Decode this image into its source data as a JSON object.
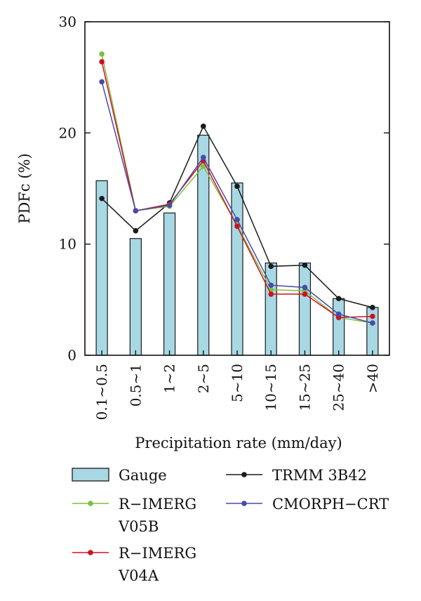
{
  "chart_data": {
    "type": "bar",
    "title": "",
    "xlabel": "Precipitation rate (mm/day)",
    "ylabel": "PDFc (%)",
    "ylim": [
      0,
      30
    ],
    "yticks": [
      0,
      10,
      20,
      30
    ],
    "grid": false,
    "legend_placement": "bottom",
    "categories": [
      "0.1~0.5",
      "0.5~1",
      "1~2",
      "2~5",
      "5~10",
      "10~15",
      "15~25",
      "25~40",
      ">40"
    ],
    "bar_series": {
      "name": "Gauge",
      "color": "#a8d8e4",
      "values": [
        15.7,
        10.5,
        12.8,
        19.8,
        15.5,
        8.3,
        8.3,
        5.1,
        4.3
      ]
    },
    "series": [
      {
        "name": "TRMM 3B42",
        "color": "#1a1a1a",
        "values": [
          14.1,
          11.2,
          13.7,
          20.6,
          15.2,
          8.0,
          8.1,
          5.1,
          4.3
        ]
      },
      {
        "name": "R-IMERG V05B",
        "color": "#7fbf3f",
        "values": [
          27.1,
          13.0,
          13.4,
          17.0,
          11.7,
          5.9,
          5.8,
          3.4,
          2.9
        ]
      },
      {
        "name": "R-IMERG V04A",
        "color": "#d0101e",
        "values": [
          26.4,
          13.0,
          13.6,
          17.5,
          11.6,
          5.5,
          5.5,
          3.4,
          3.5
        ]
      },
      {
        "name": "CMORPH-CRT",
        "color": "#4a4aa8",
        "values": [
          24.6,
          13.0,
          13.5,
          17.8,
          12.2,
          6.3,
          6.1,
          3.7,
          2.9
        ]
      }
    ],
    "legend": [
      {
        "label": "Gauge",
        "kind": "bar"
      },
      {
        "label": "TRMM 3B42",
        "kind": "line"
      },
      {
        "label": "R−IMERG\nV05B",
        "kind": "line"
      },
      {
        "label": "CMORPH−CRT",
        "kind": "line"
      },
      {
        "label": "R−IMERG\nV04A",
        "kind": "line"
      }
    ]
  }
}
